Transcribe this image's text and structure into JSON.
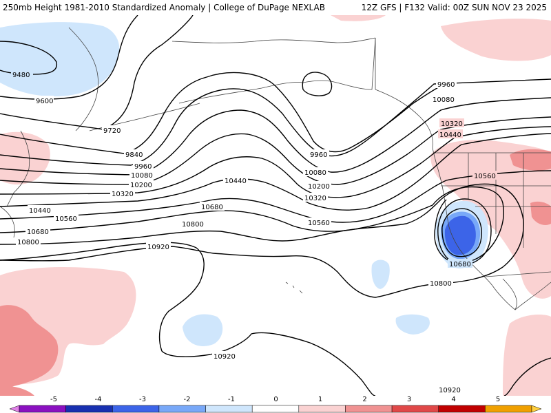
{
  "header": {
    "title_left": "250mb Height 1981-2010 Standardized Anomaly | College of DuPage NEXLAB",
    "title_right": "12Z GFS | F132 Valid: 00Z SUN NOV 23 2025"
  },
  "contour_labels": {
    "c9480": "9480",
    "c9600": "9600",
    "c9720": "9720",
    "c9840": "9840",
    "c9960_w": "9960",
    "c9960_c": "9960",
    "c9960_e": "9960",
    "c10080_w": "10080",
    "c10080_c": "10080",
    "c10080_e": "10080",
    "c10200_w": "10200",
    "c10200_c": "10200",
    "c10320_w": "10320",
    "c10320_c": "10320",
    "c10320_e": "10320",
    "c10440_w": "10440",
    "c10440_c": "10440",
    "c10440_e": "10440",
    "c10560_w": "10560",
    "c10560_c": "10560",
    "c10560_e": "10560",
    "c10680_w": "10680",
    "c10680_c": "10680",
    "c10680_e": "10680",
    "c10800_w": "10800",
    "c10800_c": "10800",
    "c10800_e": "10800",
    "c10920_w": "10920",
    "c10920_s": "10920",
    "c10920_se": "10920"
  },
  "colorbar": {
    "ticks": [
      "-5",
      "-4",
      "-3",
      "-2",
      "-1",
      "0",
      "1",
      "2",
      "3",
      "4",
      "5"
    ],
    "colors": [
      "#e080e8",
      "#8a10c0",
      "#1830b0",
      "#3c64e8",
      "#78a8f8",
      "#cfe6fc",
      "#ffffff",
      "#fad2d2",
      "#f09292",
      "#e04848",
      "#c00000",
      "#f0a000",
      "#ffd040"
    ]
  },
  "colors": {
    "neg_light": "#cfe6fc",
    "neg_mid": "#78a8f8",
    "neg_strong": "#3c64e8",
    "pos_light": "#fad2d2",
    "pos_mid": "#f09292",
    "pos_strong": "#e04848",
    "coast": "#444444",
    "contour": "#000000"
  }
}
